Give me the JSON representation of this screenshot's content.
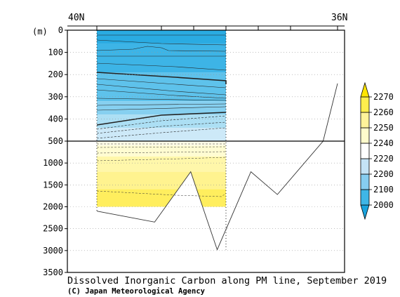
{
  "chart_data": {
    "type": "heatmap",
    "title": "Dissolved Inorganic Carbon along PM line, September 2019",
    "credit": "(C) Japan Meteorological Agency",
    "x_axis": {
      "left_label": "40N",
      "right_label": "36N"
    },
    "y_axis": {
      "unit_label": "(m)",
      "upper_ticks": [
        "0",
        "100",
        "200",
        "300",
        "400",
        "500"
      ],
      "lower_ticks": [
        "1000",
        "1500",
        "2000",
        "2500",
        "3000",
        "3500"
      ],
      "upper_range_m": [
        0,
        500
      ],
      "lower_range_m": [
        500,
        3500
      ]
    },
    "colorbar": {
      "levels": [
        "2000",
        "2100",
        "2200",
        "2220",
        "2240",
        "2250",
        "2260",
        "2270"
      ],
      "colors": [
        "#1aa3dd",
        "#3fb6e6",
        "#86cdf0",
        "#c4e3f6",
        "#ffffff",
        "#fffbcc",
        "#fff39a",
        "#ffee4d",
        "#ffe500"
      ]
    },
    "field_colors": {
      "upper_bands": [
        "#2aabe2",
        "#3db4e6",
        "#5ec2eb",
        "#86d0f0",
        "#acdff4",
        "#cde9f8"
      ],
      "lower_bands": [
        "#fffde8",
        "#fffcd2",
        "#fff7aa",
        "#fff38f",
        "#ffee5e"
      ]
    },
    "bottom_profile": [
      {
        "pos": 0.0,
        "depth_m": 2100
      },
      {
        "pos": 0.24,
        "depth_m": 2350
      },
      {
        "pos": 0.39,
        "depth_m": 1200
      },
      {
        "pos": 0.5,
        "depth_m": 2980
      },
      {
        "pos": 0.64,
        "depth_m": 1200
      },
      {
        "pos": 0.75,
        "depth_m": 1720
      },
      {
        "pos": 0.94,
        "depth_m": 500
      },
      {
        "pos": 1.0,
        "depth_m": 240
      }
    ]
  }
}
